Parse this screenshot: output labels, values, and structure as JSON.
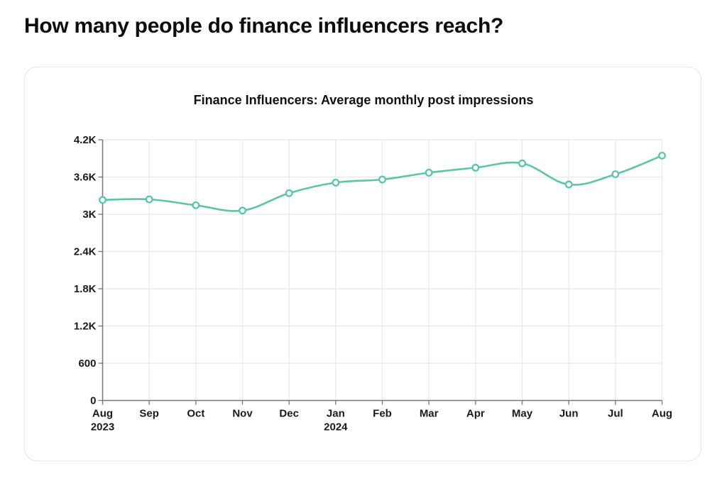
{
  "page": {
    "title": "How many people do finance influencers reach?"
  },
  "chart_data": {
    "type": "line",
    "title": "Finance Influencers: Average monthly post impressions",
    "xlabel": "",
    "ylabel": "",
    "categories": [
      "Aug 2023",
      "Sep",
      "Oct",
      "Nov",
      "Dec",
      "Jan 2024",
      "Feb",
      "Mar",
      "Apr",
      "May",
      "Jun",
      "Jul",
      "Aug"
    ],
    "x_tick_labels": [
      {
        "line1": "Aug",
        "line2": "2023"
      },
      {
        "line1": "Sep",
        "line2": ""
      },
      {
        "line1": "Oct",
        "line2": ""
      },
      {
        "line1": "Nov",
        "line2": ""
      },
      {
        "line1": "Dec",
        "line2": ""
      },
      {
        "line1": "Jan",
        "line2": "2024"
      },
      {
        "line1": "Feb",
        "line2": ""
      },
      {
        "line1": "Mar",
        "line2": ""
      },
      {
        "line1": "Apr",
        "line2": ""
      },
      {
        "line1": "May",
        "line2": ""
      },
      {
        "line1": "Jun",
        "line2": ""
      },
      {
        "line1": "Jul",
        "line2": ""
      },
      {
        "line1": "Aug",
        "line2": ""
      }
    ],
    "series": [
      {
        "name": "Average monthly post impressions",
        "color": "#5cc5a7",
        "values": [
          3230,
          3240,
          3145,
          3060,
          3340,
          3510,
          3560,
          3670,
          3750,
          3820,
          3480,
          3645,
          3945
        ]
      }
    ],
    "y_ticks": [
      0,
      600,
      1200,
      1800,
      2400,
      3000,
      3600,
      4200
    ],
    "y_tick_labels": [
      "0",
      "600",
      "1.2K",
      "1.8K",
      "2.4K",
      "3K",
      "3.6K",
      "4.2K"
    ],
    "ylim": [
      0,
      4200
    ],
    "grid": true,
    "legend": "none",
    "colors": {
      "line": "#5cc5a7",
      "grid": "#e8e8e8",
      "axis": "#777777"
    }
  }
}
